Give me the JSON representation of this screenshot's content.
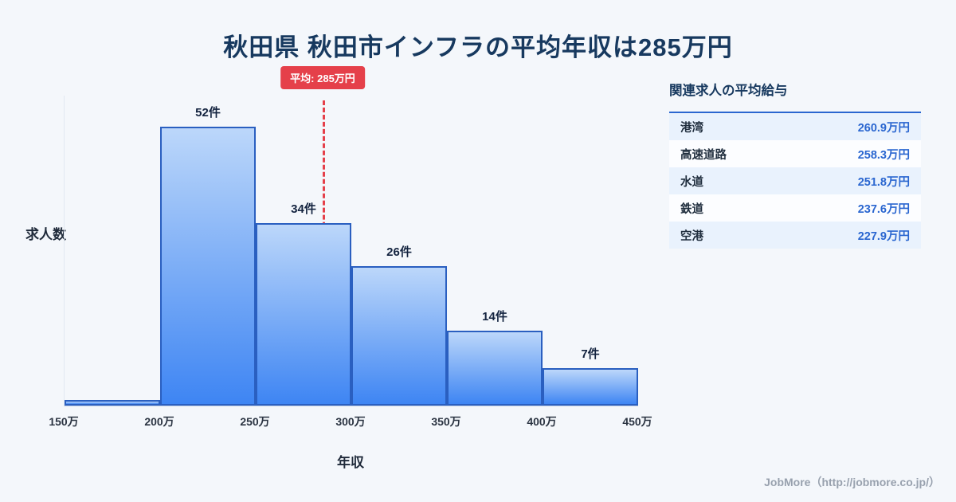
{
  "page": {
    "title": "秋田県 秋田市インフラの平均年収は285万円",
    "footer": "JobMore（http://jobmore.co.jp/）"
  },
  "chart_data": {
    "type": "bar",
    "title": "秋田県 秋田市インフラの平均年収は285万円",
    "xlabel": "年収",
    "ylabel": "求人数",
    "x_range": [
      150,
      450
    ],
    "x_ticks": [
      "150万",
      "200万",
      "250万",
      "300万",
      "350万",
      "400万",
      "450万"
    ],
    "ylim": [
      0,
      58
    ],
    "grid": false,
    "bins": [
      {
        "range": "150万-200万",
        "count": 1,
        "label": ""
      },
      {
        "range": "200万-250万",
        "count": 52,
        "label": "52件"
      },
      {
        "range": "250万-300万",
        "count": 34,
        "label": "34件"
      },
      {
        "range": "300万-350万",
        "count": 26,
        "label": "26件"
      },
      {
        "range": "350万-400万",
        "count": 14,
        "label": "14件"
      },
      {
        "range": "400万-450万",
        "count": 7,
        "label": "7件"
      }
    ],
    "average_line": {
      "value": 285,
      "label": "平均: 285万円"
    }
  },
  "side_panel": {
    "heading": "関連求人の平均給与",
    "rows": [
      {
        "name": "港湾",
        "value": "260.9万円"
      },
      {
        "name": "高速道路",
        "value": "258.3万円"
      },
      {
        "name": "水道",
        "value": "251.8万円"
      },
      {
        "name": "鉄道",
        "value": "237.6万円"
      },
      {
        "name": "空港",
        "value": "227.9万円"
      }
    ]
  },
  "colors": {
    "bar_top": "#bcd7fa",
    "bar_bottom": "#3e85f3",
    "bar_border": "#2a5fc0",
    "accent_red": "#e5404a",
    "value_blue": "#2a66d0",
    "row_alt": "#e9f2fd",
    "title_navy": "#17395f",
    "background": "#f4f7fb"
  }
}
